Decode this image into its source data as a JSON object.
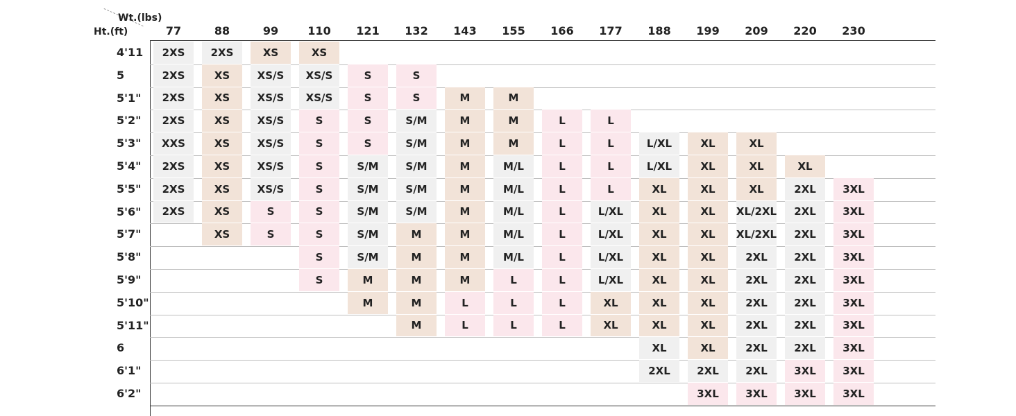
{
  "axis_titles": {
    "weight": "Wt.(lbs)",
    "height": "Ht.(ft)"
  },
  "weights": [
    "77",
    "88",
    "99",
    "110",
    "121",
    "132",
    "143",
    "155",
    "166",
    "177",
    "188",
    "199",
    "209",
    "220",
    "230"
  ],
  "heights": [
    "4'11",
    "5",
    "5'1\"",
    "5'2\"",
    "5'3\"",
    "5'4\"",
    "5'5\"",
    "5'6\"",
    "5'7\"",
    "5'8\"",
    "5'9\"",
    "5'10\"",
    "5'11\"",
    "6",
    "6'1\"",
    "6'2\""
  ],
  "colors": {
    "XS_S": "#f0f0f0",
    "tan": "#f2e3d8",
    "pink": "#fbe7ec",
    "empty": "#ffffff"
  },
  "chart_data": {
    "type": "table",
    "columns_header": "Wt.(lbs)",
    "rows_header": "Ht.(ft)",
    "rows": [
      [
        "2XS",
        "2XS",
        "XS",
        "XS",
        "",
        "",
        "",
        "",
        "",
        "",
        "",
        "",
        "",
        "",
        ""
      ],
      [
        "2XS",
        "XS",
        "XS/S",
        "XS/S",
        "S",
        "S",
        "",
        "",
        "",
        "",
        "",
        "",
        "",
        "",
        ""
      ],
      [
        "2XS",
        "XS",
        "XS/S",
        "XS/S",
        "S",
        "S",
        "M",
        "M",
        "",
        "",
        "",
        "",
        "",
        "",
        ""
      ],
      [
        "2XS",
        "XS",
        "XS/S",
        "S",
        "S",
        "S/M",
        "M",
        "M",
        "L",
        "L",
        "",
        "",
        "",
        "",
        ""
      ],
      [
        "XXS",
        "XS",
        "XS/S",
        "S",
        "S",
        "S/M",
        "M",
        "M",
        "L",
        "L",
        "L/XL",
        "XL",
        "XL",
        "",
        ""
      ],
      [
        "2XS",
        "XS",
        "XS/S",
        "S",
        "S/M",
        "S/M",
        "M",
        "M/L",
        "L",
        "L",
        "L/XL",
        "XL",
        "XL",
        "XL",
        ""
      ],
      [
        "2XS",
        "XS",
        "XS/S",
        "S",
        "S/M",
        "S/M",
        "M",
        "M/L",
        "L",
        "L",
        "XL",
        "XL",
        "XL",
        "2XL",
        "3XL"
      ],
      [
        "2XS",
        "XS",
        "S",
        "S",
        "S/M",
        "S/M",
        "M",
        "M/L",
        "L",
        "L/XL",
        "XL",
        "XL",
        "XL/2XL",
        "2XL",
        "3XL"
      ],
      [
        "",
        "XS",
        "S",
        "S",
        "S/M",
        "M",
        "M",
        "M/L",
        "L",
        "L/XL",
        "XL",
        "XL",
        "XL/2XL",
        "2XL",
        "3XL"
      ],
      [
        "",
        "",
        "",
        "S",
        "S/M",
        "M",
        "M",
        "M/L",
        "L",
        "L/XL",
        "XL",
        "XL",
        "2XL",
        "2XL",
        "3XL"
      ],
      [
        "",
        "",
        "",
        "S",
        "M",
        "M",
        "M",
        "L",
        "L",
        "L/XL",
        "XL",
        "XL",
        "2XL",
        "2XL",
        "3XL"
      ],
      [
        "",
        "",
        "",
        "",
        "M",
        "M",
        "L",
        "L",
        "L",
        "XL",
        "XL",
        "XL",
        "2XL",
        "2XL",
        "3XL"
      ],
      [
        "",
        "",
        "",
        "",
        "",
        "M",
        "L",
        "L",
        "L",
        "XL",
        "XL",
        "XL",
        "2XL",
        "2XL",
        "3XL"
      ],
      [
        "",
        "",
        "",
        "",
        "",
        "",
        "",
        "",
        "",
        "",
        "XL",
        "XL",
        "2XL",
        "2XL",
        "3XL"
      ],
      [
        "",
        "",
        "",
        "",
        "",
        "",
        "",
        "",
        "",
        "",
        "2XL",
        "2XL",
        "2XL",
        "3XL",
        "3XL"
      ],
      [
        "",
        "",
        "",
        "",
        "",
        "",
        "",
        "",
        "",
        "",
        "",
        "3XL",
        "3XL",
        "3XL",
        "3XL"
      ]
    ],
    "shading": [
      [
        "g",
        "g",
        "t",
        "t",
        "",
        "",
        "",
        "",
        "",
        "",
        "",
        "",
        "",
        "",
        ""
      ],
      [
        "g",
        "t",
        "g",
        "g",
        "p",
        "p",
        "",
        "",
        "",
        "",
        "",
        "",
        "",
        "",
        ""
      ],
      [
        "g",
        "t",
        "g",
        "g",
        "p",
        "p",
        "t",
        "t",
        "",
        "",
        "",
        "",
        "",
        "",
        ""
      ],
      [
        "g",
        "t",
        "g",
        "p",
        "p",
        "g",
        "t",
        "t",
        "p",
        "p",
        "",
        "",
        "",
        "",
        ""
      ],
      [
        "g",
        "t",
        "g",
        "p",
        "p",
        "g",
        "t",
        "t",
        "p",
        "p",
        "g",
        "t",
        "t",
        "",
        ""
      ],
      [
        "g",
        "t",
        "g",
        "p",
        "g",
        "g",
        "t",
        "g",
        "p",
        "p",
        "g",
        "t",
        "t",
        "t",
        ""
      ],
      [
        "g",
        "t",
        "g",
        "p",
        "g",
        "g",
        "t",
        "g",
        "p",
        "p",
        "t",
        "t",
        "t",
        "g",
        "p"
      ],
      [
        "g",
        "t",
        "p",
        "p",
        "g",
        "g",
        "t",
        "g",
        "p",
        "g",
        "t",
        "t",
        "g",
        "g",
        "p"
      ],
      [
        "",
        "t",
        "p",
        "p",
        "g",
        "t",
        "t",
        "g",
        "p",
        "g",
        "t",
        "t",
        "g",
        "g",
        "p"
      ],
      [
        "",
        "",
        "",
        "p",
        "g",
        "t",
        "t",
        "g",
        "p",
        "g",
        "t",
        "t",
        "g",
        "g",
        "p"
      ],
      [
        "",
        "",
        "",
        "p",
        "t",
        "t",
        "t",
        "p",
        "p",
        "g",
        "t",
        "t",
        "g",
        "g",
        "p"
      ],
      [
        "",
        "",
        "",
        "",
        "t",
        "t",
        "p",
        "p",
        "p",
        "t",
        "t",
        "t",
        "g",
        "g",
        "p"
      ],
      [
        "",
        "",
        "",
        "",
        "",
        "t",
        "p",
        "p",
        "p",
        "t",
        "t",
        "t",
        "g",
        "g",
        "p"
      ],
      [
        "",
        "",
        "",
        "",
        "",
        "",
        "",
        "",
        "",
        "",
        "g",
        "t",
        "g",
        "g",
        "p"
      ],
      [
        "",
        "",
        "",
        "",
        "",
        "",
        "",
        "",
        "",
        "",
        "g",
        "g",
        "g",
        "p",
        "p"
      ],
      [
        "",
        "",
        "",
        "",
        "",
        "",
        "",
        "",
        "",
        "",
        "",
        "p",
        "p",
        "p",
        "p"
      ]
    ]
  }
}
